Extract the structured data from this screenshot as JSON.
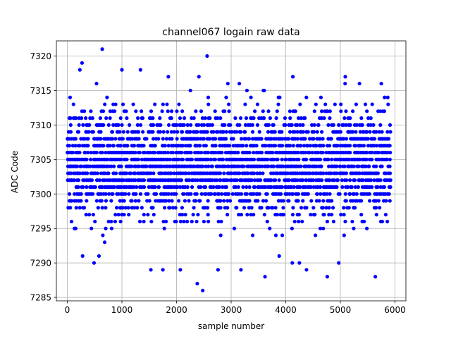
{
  "chart_data": {
    "type": "scatter",
    "title": "channel067 logain raw data",
    "xlabel": "sample number",
    "ylabel": "ADC Code",
    "xlim": [
      -200,
      6200
    ],
    "ylim": [
      7284.5,
      7322.2
    ],
    "xticks": [
      0,
      1000,
      2000,
      3000,
      4000,
      5000,
      6000
    ],
    "yticks": [
      7285,
      7290,
      7295,
      7300,
      7305,
      7310,
      7315,
      7320
    ],
    "grid": true,
    "marker_color": "#0000ff",
    "series": [
      {
        "x_range": [
          0,
          5900
        ],
        "dense_band": [
          7293,
          7316
        ],
        "core_band": [
          7297,
          7312
        ],
        "outliers": [
          {
            "x": 640,
            "y": 7321
          },
          {
            "x": 2560,
            "y": 7320
          },
          {
            "x": 270,
            "y": 7319
          },
          {
            "x": 230,
            "y": 7318
          },
          {
            "x": 1340,
            "y": 7318
          },
          {
            "x": 1000,
            "y": 7318
          },
          {
            "x": 2410,
            "y": 7317
          },
          {
            "x": 4130,
            "y": 7317
          },
          {
            "x": 5090,
            "y": 7317
          },
          {
            "x": 1850,
            "y": 7317
          },
          {
            "x": 2940,
            "y": 7316
          },
          {
            "x": 3150,
            "y": 7316
          },
          {
            "x": 5350,
            "y": 7316
          },
          {
            "x": 5750,
            "y": 7316
          },
          {
            "x": 3290,
            "y": 7315
          },
          {
            "x": 490,
            "y": 7290
          },
          {
            "x": 1530,
            "y": 7289
          },
          {
            "x": 1750,
            "y": 7289
          },
          {
            "x": 2070,
            "y": 7289
          },
          {
            "x": 2760,
            "y": 7289
          },
          {
            "x": 3180,
            "y": 7289
          },
          {
            "x": 3620,
            "y": 7288
          },
          {
            "x": 4760,
            "y": 7288
          },
          {
            "x": 5640,
            "y": 7288
          },
          {
            "x": 4380,
            "y": 7289
          },
          {
            "x": 2380,
            "y": 7287
          },
          {
            "x": 2480,
            "y": 7286
          },
          {
            "x": 280,
            "y": 7291
          },
          {
            "x": 580,
            "y": 7291
          },
          {
            "x": 3880,
            "y": 7291
          },
          {
            "x": 4970,
            "y": 7290
          },
          {
            "x": 4120,
            "y": 7290
          },
          {
            "x": 4250,
            "y": 7290
          }
        ]
      }
    ]
  }
}
